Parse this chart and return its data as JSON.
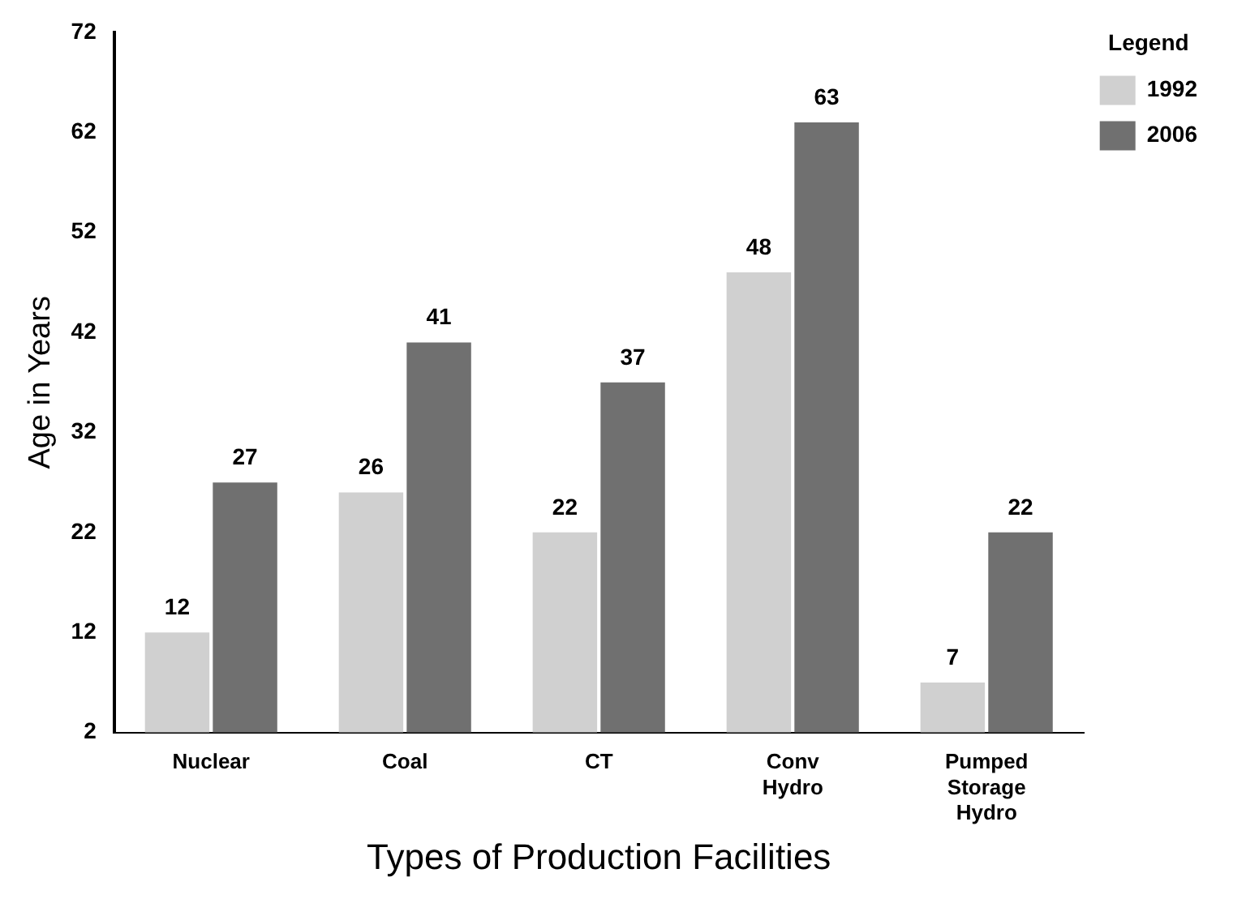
{
  "chart_data": {
    "type": "bar",
    "xlabel": "Types of Production Facilities",
    "ylabel": "Age in Years",
    "legend_title": "Legend",
    "categories": [
      "Nuclear",
      "Coal",
      "CT",
      "Conv Hydro",
      "Pumped Storage Hydro"
    ],
    "series": [
      {
        "name": "1992",
        "color": "#d0d0d0",
        "values": [
          12,
          26,
          22,
          48,
          7
        ]
      },
      {
        "name": "2006",
        "color": "#707070",
        "values": [
          27,
          41,
          37,
          63,
          22
        ]
      }
    ],
    "ylim": [
      2,
      72
    ],
    "yticks": [
      2,
      12,
      22,
      32,
      42,
      52,
      62,
      72
    ],
    "grid": false,
    "legend": "right",
    "data_labels": true
  }
}
